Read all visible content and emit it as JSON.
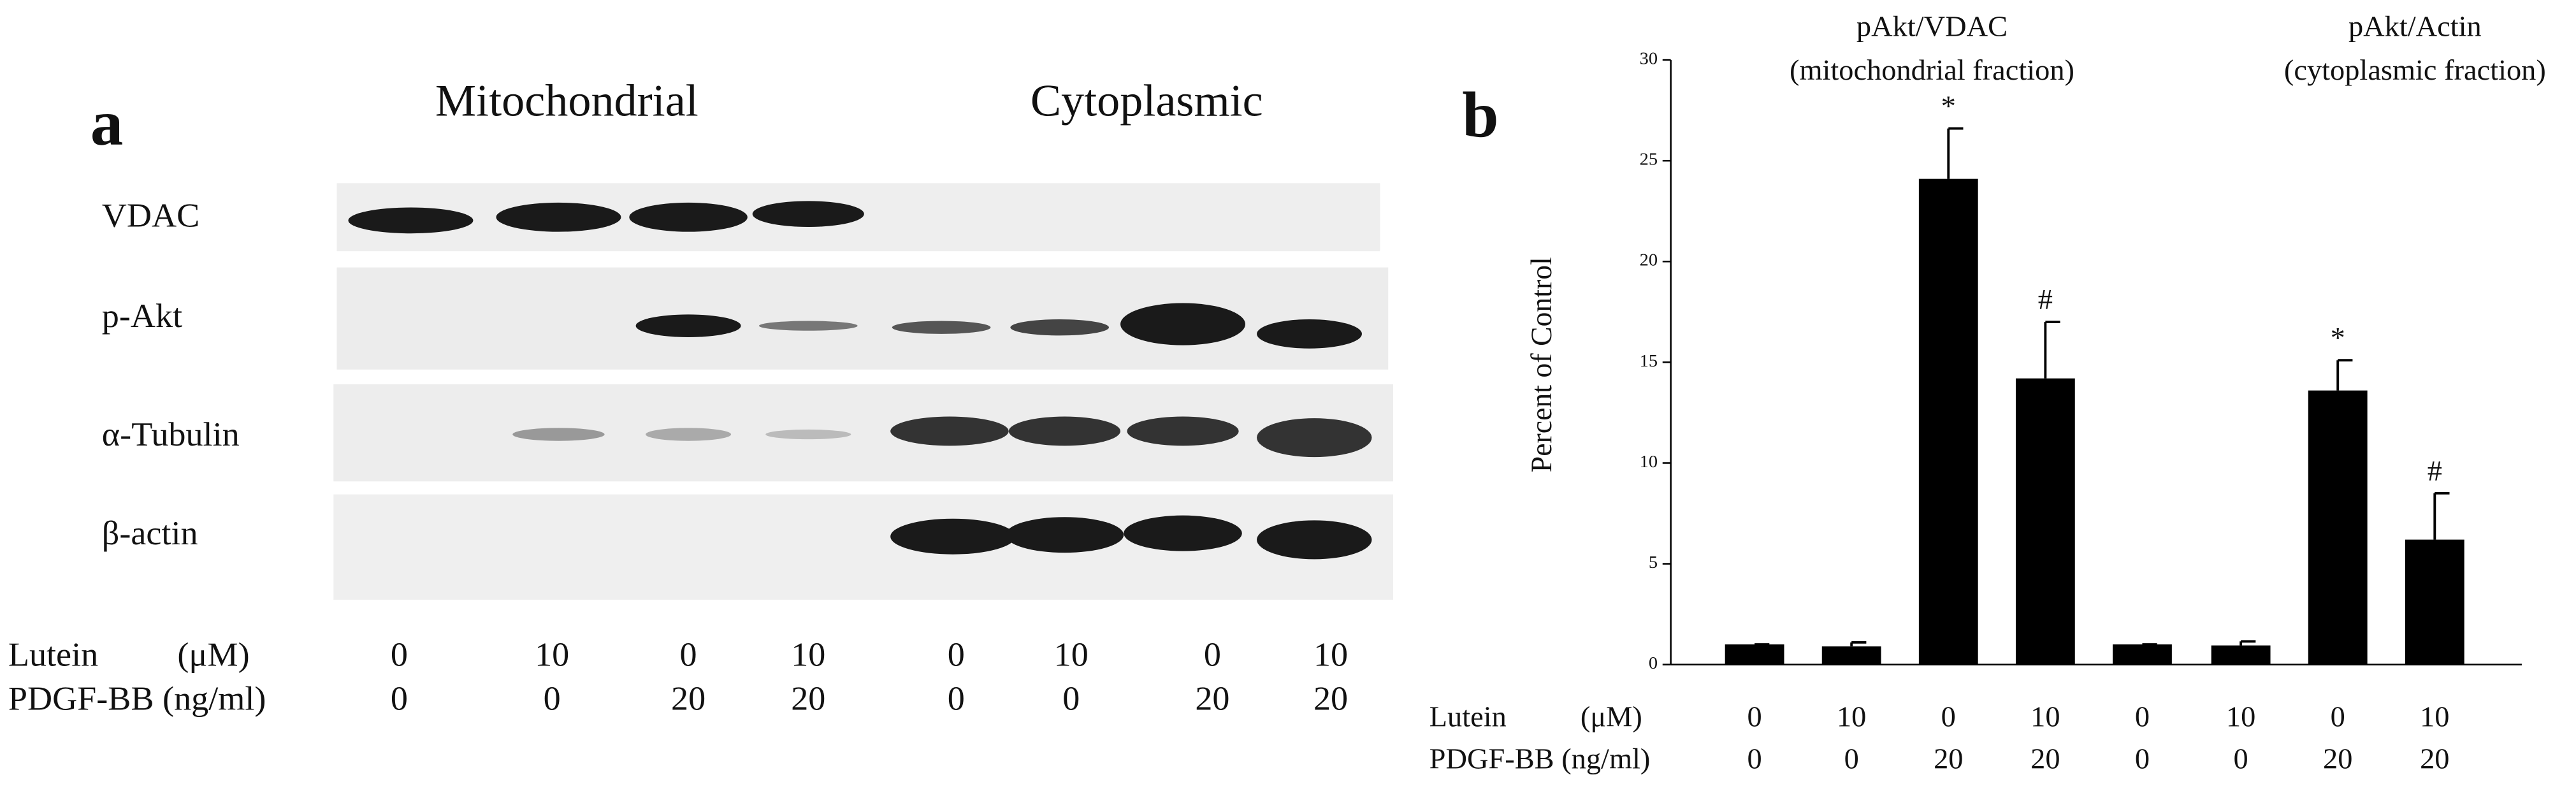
{
  "panel_a": {
    "label": "a",
    "fractions": [
      "Mitochondrial",
      "Cytoplasmic"
    ],
    "rows": [
      "VDAC",
      "p-Akt",
      "α-Tubulin",
      "β-actin"
    ],
    "lutein_label": "Lutein",
    "lutein_unit": "(μM)",
    "pdgf_label": "PDGF-BB (ng/ml)",
    "lutein": [
      "0",
      "10",
      "0",
      "10",
      "0",
      "10",
      "0",
      "10"
    ],
    "pdgf": [
      "0",
      "0",
      "20",
      "20",
      "0",
      "0",
      "20",
      "20"
    ]
  },
  "chart_data": {
    "type": "bar",
    "panel_label": "b",
    "group_titles": [
      "pAkt/VDAC",
      "(mitochondrial fraction)",
      "pAkt/Actin",
      "(cytoplasmic fraction)"
    ],
    "y_label": "Percent of Control",
    "lutein_label": "Lutein",
    "lutein_unit": "(μM)",
    "pdgf_label": "PDGF-BB (ng/ml)",
    "lutein": [
      "0",
      "10",
      "0",
      "10",
      "0",
      "10",
      "0",
      "10"
    ],
    "pdgf": [
      "0",
      "0",
      "20",
      "20",
      "0",
      "0",
      "20",
      "20"
    ],
    "values": [
      1,
      0.9,
      24.1,
      14.2,
      1,
      0.95,
      13.6,
      6.2
    ],
    "errors": [
      0,
      0.2,
      2.5,
      2.8,
      0,
      0.2,
      1.5,
      2.3
    ],
    "value_markers": [
      null,
      null,
      "*",
      "#",
      null,
      null,
      "*",
      "#"
    ],
    "color": "#000000",
    "ylim": [
      0,
      30
    ],
    "yticks": [
      0,
      5,
      10,
      15,
      20,
      25,
      30
    ]
  }
}
